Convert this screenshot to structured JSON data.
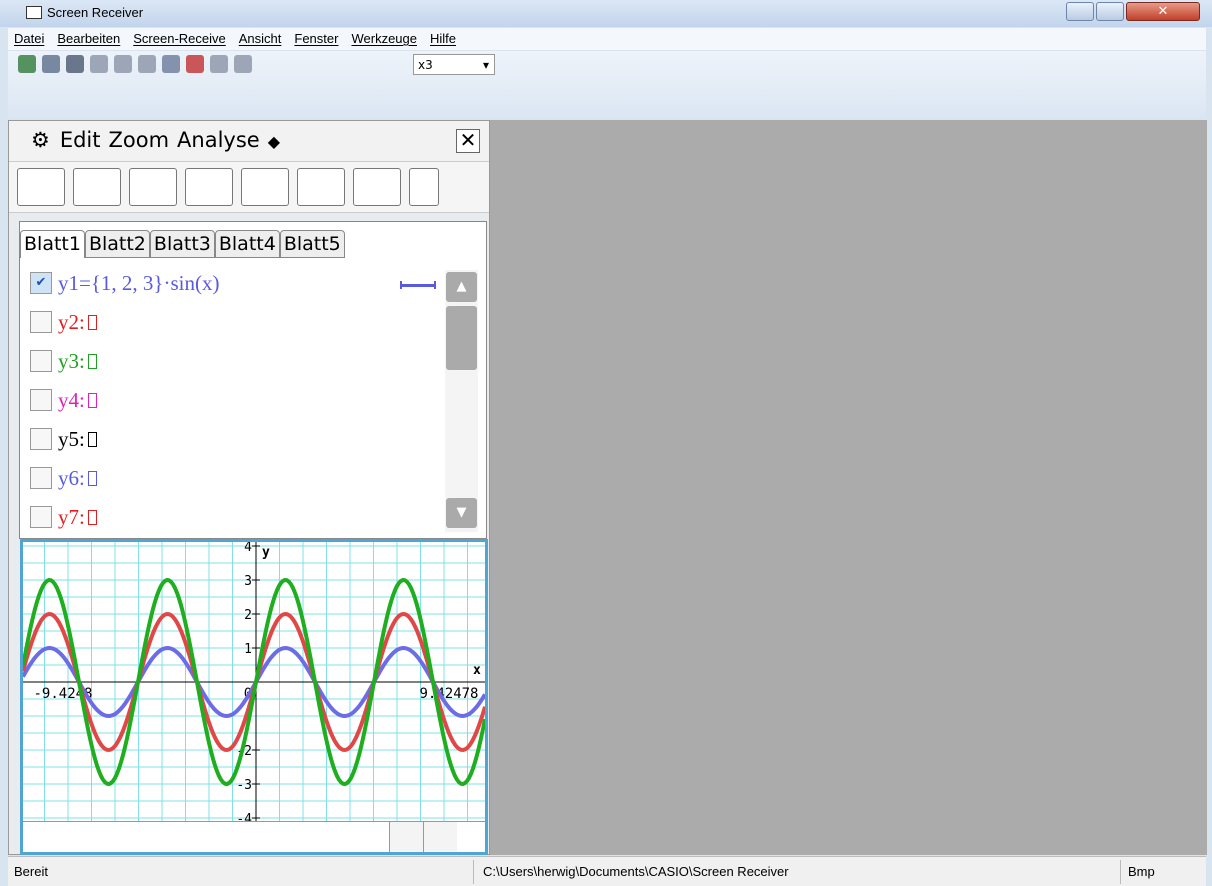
{
  "window": {
    "title": "Screen Receiver"
  },
  "menu": [
    "Datei",
    "Bearbeiten",
    "Screen-Receive",
    "Ansicht",
    "Fenster",
    "Werkzeuge",
    "Hilfe"
  ],
  "toolbar": {
    "zoom": "x3"
  },
  "panel": {
    "menu": [
      "Edit",
      "Zoom",
      "Analyse"
    ],
    "tabs": [
      "Blatt1",
      "Blatt2",
      "Blatt3",
      "Blatt4",
      "Blatt5"
    ],
    "functions": [
      {
        "label": "y1={1, 2, 3}·sin(x)",
        "color": "#5a5ae0",
        "checked": true
      },
      {
        "label": "y2:",
        "color": "#e02020",
        "checked": false
      },
      {
        "label": "y3:",
        "color": "#20a020",
        "checked": false
      },
      {
        "label": "y4:",
        "color": "#e020c0",
        "checked": false
      },
      {
        "label": "y5:",
        "color": "#000000",
        "checked": false
      },
      {
        "label": "y6:",
        "color": "#5a5ae0",
        "checked": false
      },
      {
        "label": "y7:",
        "color": "#e02020",
        "checked": false
      }
    ]
  },
  "graph": {
    "x_label": "x",
    "y_label": "y",
    "xticks": [
      -9.4248,
      0,
      9.42478
    ],
    "yticks": [
      4,
      3,
      2,
      1,
      -2,
      -3,
      -4
    ],
    "curves": [
      {
        "color": "#6c6ce6",
        "amplitude": 1
      },
      {
        "color": "#e04848",
        "amplitude": 2
      },
      {
        "color": "#1fae1f",
        "amplitude": 3
      }
    ]
  },
  "status": {
    "state": "Bereit",
    "path": "C:\\Users\\herwig\\Documents\\CASIO\\Screen Receiver",
    "format": "Bmp"
  }
}
